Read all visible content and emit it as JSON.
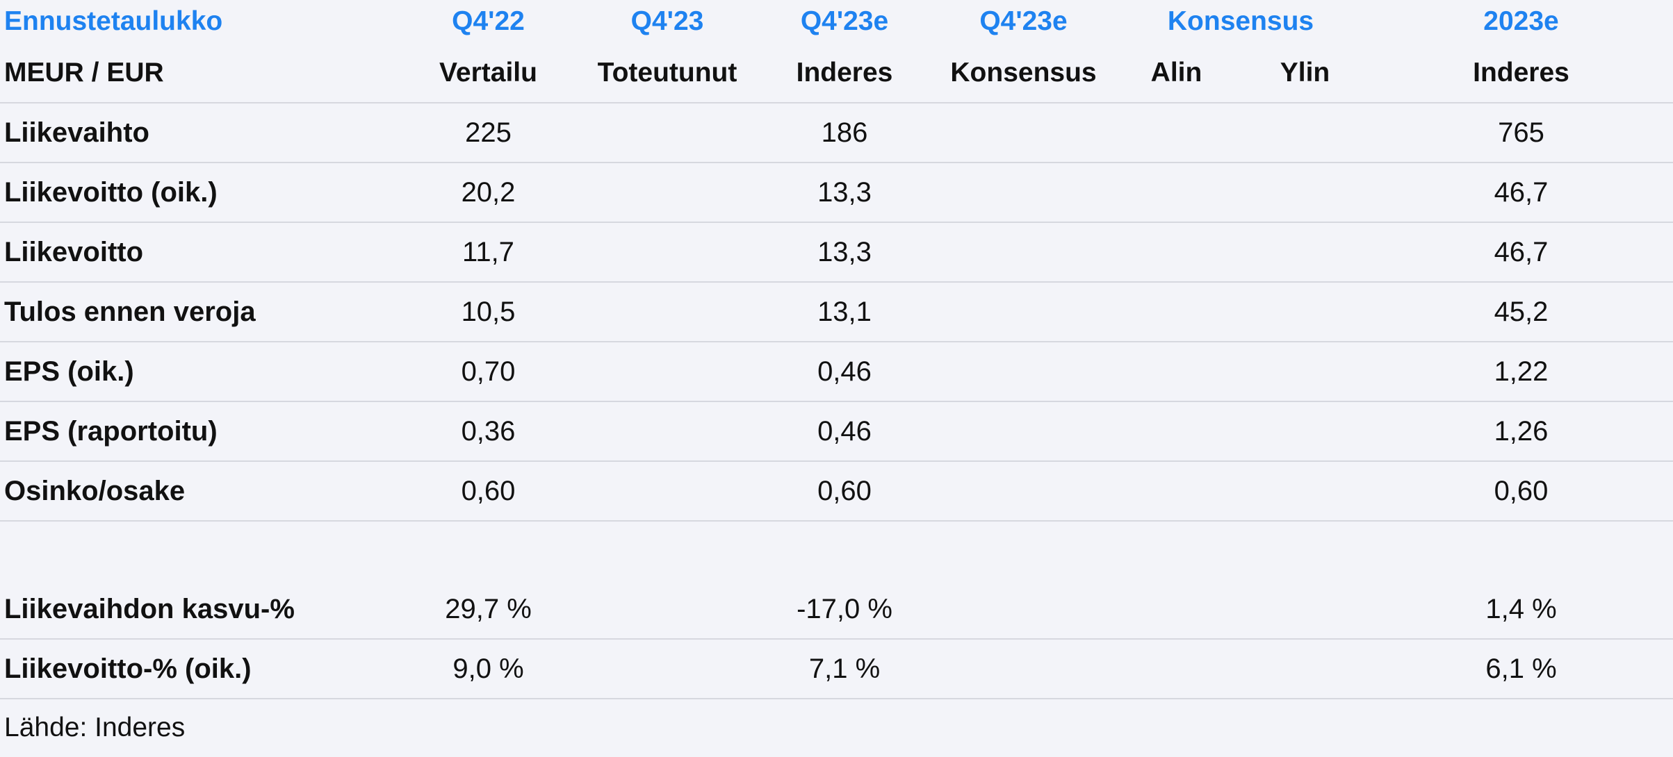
{
  "header_top": {
    "title": "Ennustetaulukko",
    "q4_22": "Q4'22",
    "q4_23": "Q4'23",
    "q4_23e_inderes": "Q4'23e",
    "q4_23e_consensus": "Q4'23e",
    "consensus": "Konsensus",
    "year_2023e": "2023e"
  },
  "header_sub": {
    "unit": "MEUR / EUR",
    "comparison": "Vertailu",
    "actual": "Toteutunut",
    "inderes": "Inderes",
    "consensus": "Konsensus",
    "low": "Alin",
    "high": "Ylin",
    "inderes_year": "Inderes"
  },
  "rows": [
    {
      "label": "Liikevaihto",
      "q4_22": "225",
      "q4_23": "",
      "q4_23e": "186",
      "consensus": "",
      "low": "",
      "high": "",
      "year_2023e": "765"
    },
    {
      "label": "Liikevoitto (oik.)",
      "q4_22": "20,2",
      "q4_23": "",
      "q4_23e": "13,3",
      "consensus": "",
      "low": "",
      "high": "",
      "year_2023e": "46,7"
    },
    {
      "label": "Liikevoitto",
      "q4_22": "11,7",
      "q4_23": "",
      "q4_23e": "13,3",
      "consensus": "",
      "low": "",
      "high": "",
      "year_2023e": "46,7"
    },
    {
      "label": "Tulos ennen veroja",
      "q4_22": "10,5",
      "q4_23": "",
      "q4_23e": "13,1",
      "consensus": "",
      "low": "",
      "high": "",
      "year_2023e": "45,2"
    },
    {
      "label": "EPS (oik.)",
      "q4_22": "0,70",
      "q4_23": "",
      "q4_23e": "0,46",
      "consensus": "",
      "low": "",
      "high": "",
      "year_2023e": "1,22"
    },
    {
      "label": "EPS (raportoitu)",
      "q4_22": "0,36",
      "q4_23": "",
      "q4_23e": "0,46",
      "consensus": "",
      "low": "",
      "high": "",
      "year_2023e": "1,26"
    },
    {
      "label": "Osinko/osake",
      "q4_22": "0,60",
      "q4_23": "",
      "q4_23e": "0,60",
      "consensus": "",
      "low": "",
      "high": "",
      "year_2023e": "0,60"
    }
  ],
  "ratio_rows": [
    {
      "label": "Liikevaihdon kasvu-%",
      "q4_22": "29,7 %",
      "q4_23": "",
      "q4_23e": "-17,0 %",
      "consensus": "",
      "low": "",
      "high": "",
      "year_2023e": "1,4 %"
    },
    {
      "label": "Liikevoitto-% (oik.)",
      "q4_22": "9,0 %",
      "q4_23": "",
      "q4_23e": "7,1 %",
      "consensus": "",
      "low": "",
      "high": "",
      "year_2023e": "6,1 %"
    }
  ],
  "source": "Lähde: Inderes",
  "colors": {
    "accent": "#1e82f0",
    "background": "#f3f4f9",
    "divider": "#d6d8df",
    "text": "#111111"
  }
}
